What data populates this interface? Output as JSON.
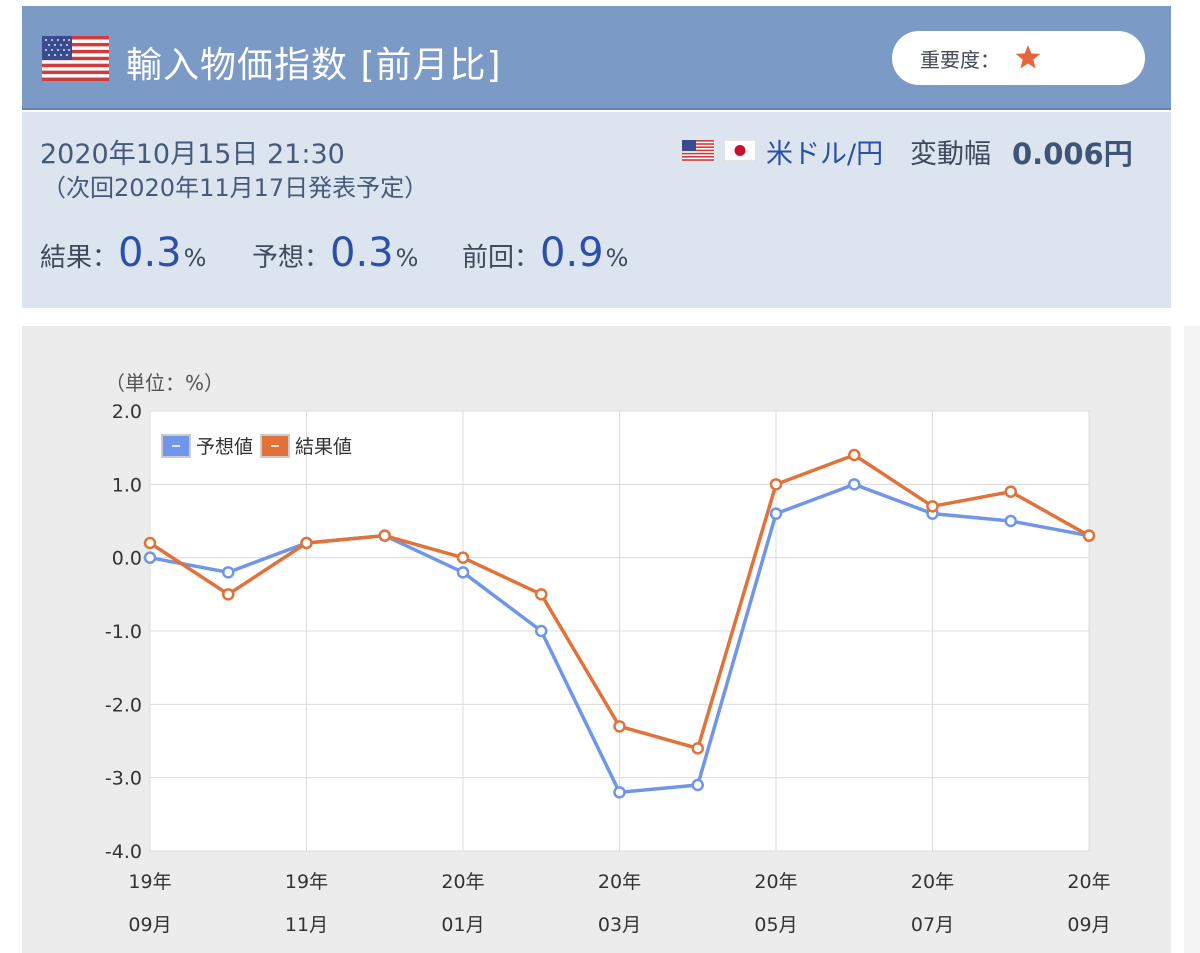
{
  "header": {
    "title": "輸入物価指数 [前月比]",
    "importance_label": "重要度：",
    "importance_stars": 1,
    "importance_star_color": "#e8643a",
    "flag_icon": "us-flag-icon"
  },
  "release": {
    "datetime": "2020年10月15日 21:30",
    "next": "（次回2020年11月17日発表予定）"
  },
  "pair": {
    "name": "米ドル/円",
    "range_label": "変動幅",
    "range_value": "0.006円",
    "flags": [
      "us-flag-icon",
      "jp-flag-icon"
    ]
  },
  "stats": {
    "result_label": "結果：",
    "result_value": "0.3",
    "forecast_label": "予想：",
    "forecast_value": "0.3",
    "previous_label": "前回：",
    "previous_value": "0.9",
    "unit": "%"
  },
  "chart_data": {
    "type": "line",
    "unit_label": "（単位：%）",
    "ylim": [
      -4.0,
      2.0
    ],
    "y_ticks": [
      "2.0",
      "1.0",
      "0.0",
      "-1.0",
      "-2.0",
      "-3.0",
      "-4.0"
    ],
    "x": [
      "19年09月",
      "19年10月",
      "19年11月",
      "19年12月",
      "20年01月",
      "20年02月",
      "20年03月",
      "20年04月",
      "20年05月",
      "20年06月",
      "20年07月",
      "20年08月",
      "20年09月"
    ],
    "x_tick_labels": [
      {
        "year": "19年",
        "month": "09月",
        "index": 0
      },
      {
        "year": "19年",
        "month": "11月",
        "index": 2
      },
      {
        "year": "20年",
        "month": "01月",
        "index": 4
      },
      {
        "year": "20年",
        "month": "03月",
        "index": 6
      },
      {
        "year": "20年",
        "month": "05月",
        "index": 8
      },
      {
        "year": "20年",
        "month": "07月",
        "index": 10
      },
      {
        "year": "20年",
        "month": "09月",
        "index": 12
      }
    ],
    "series": [
      {
        "name": "予想値",
        "color": "#6f96e8",
        "values": [
          0.0,
          -0.2,
          0.2,
          0.3,
          -0.2,
          -1.0,
          -3.2,
          -3.1,
          0.6,
          1.0,
          0.6,
          0.5,
          0.3
        ]
      },
      {
        "name": "結果値",
        "color": "#e0723a",
        "values": [
          0.2,
          -0.5,
          0.2,
          0.3,
          0.0,
          -0.5,
          -2.3,
          -2.6,
          1.0,
          1.4,
          0.7,
          0.9,
          0.3
        ]
      }
    ],
    "grid": true,
    "legend": "top-left"
  }
}
